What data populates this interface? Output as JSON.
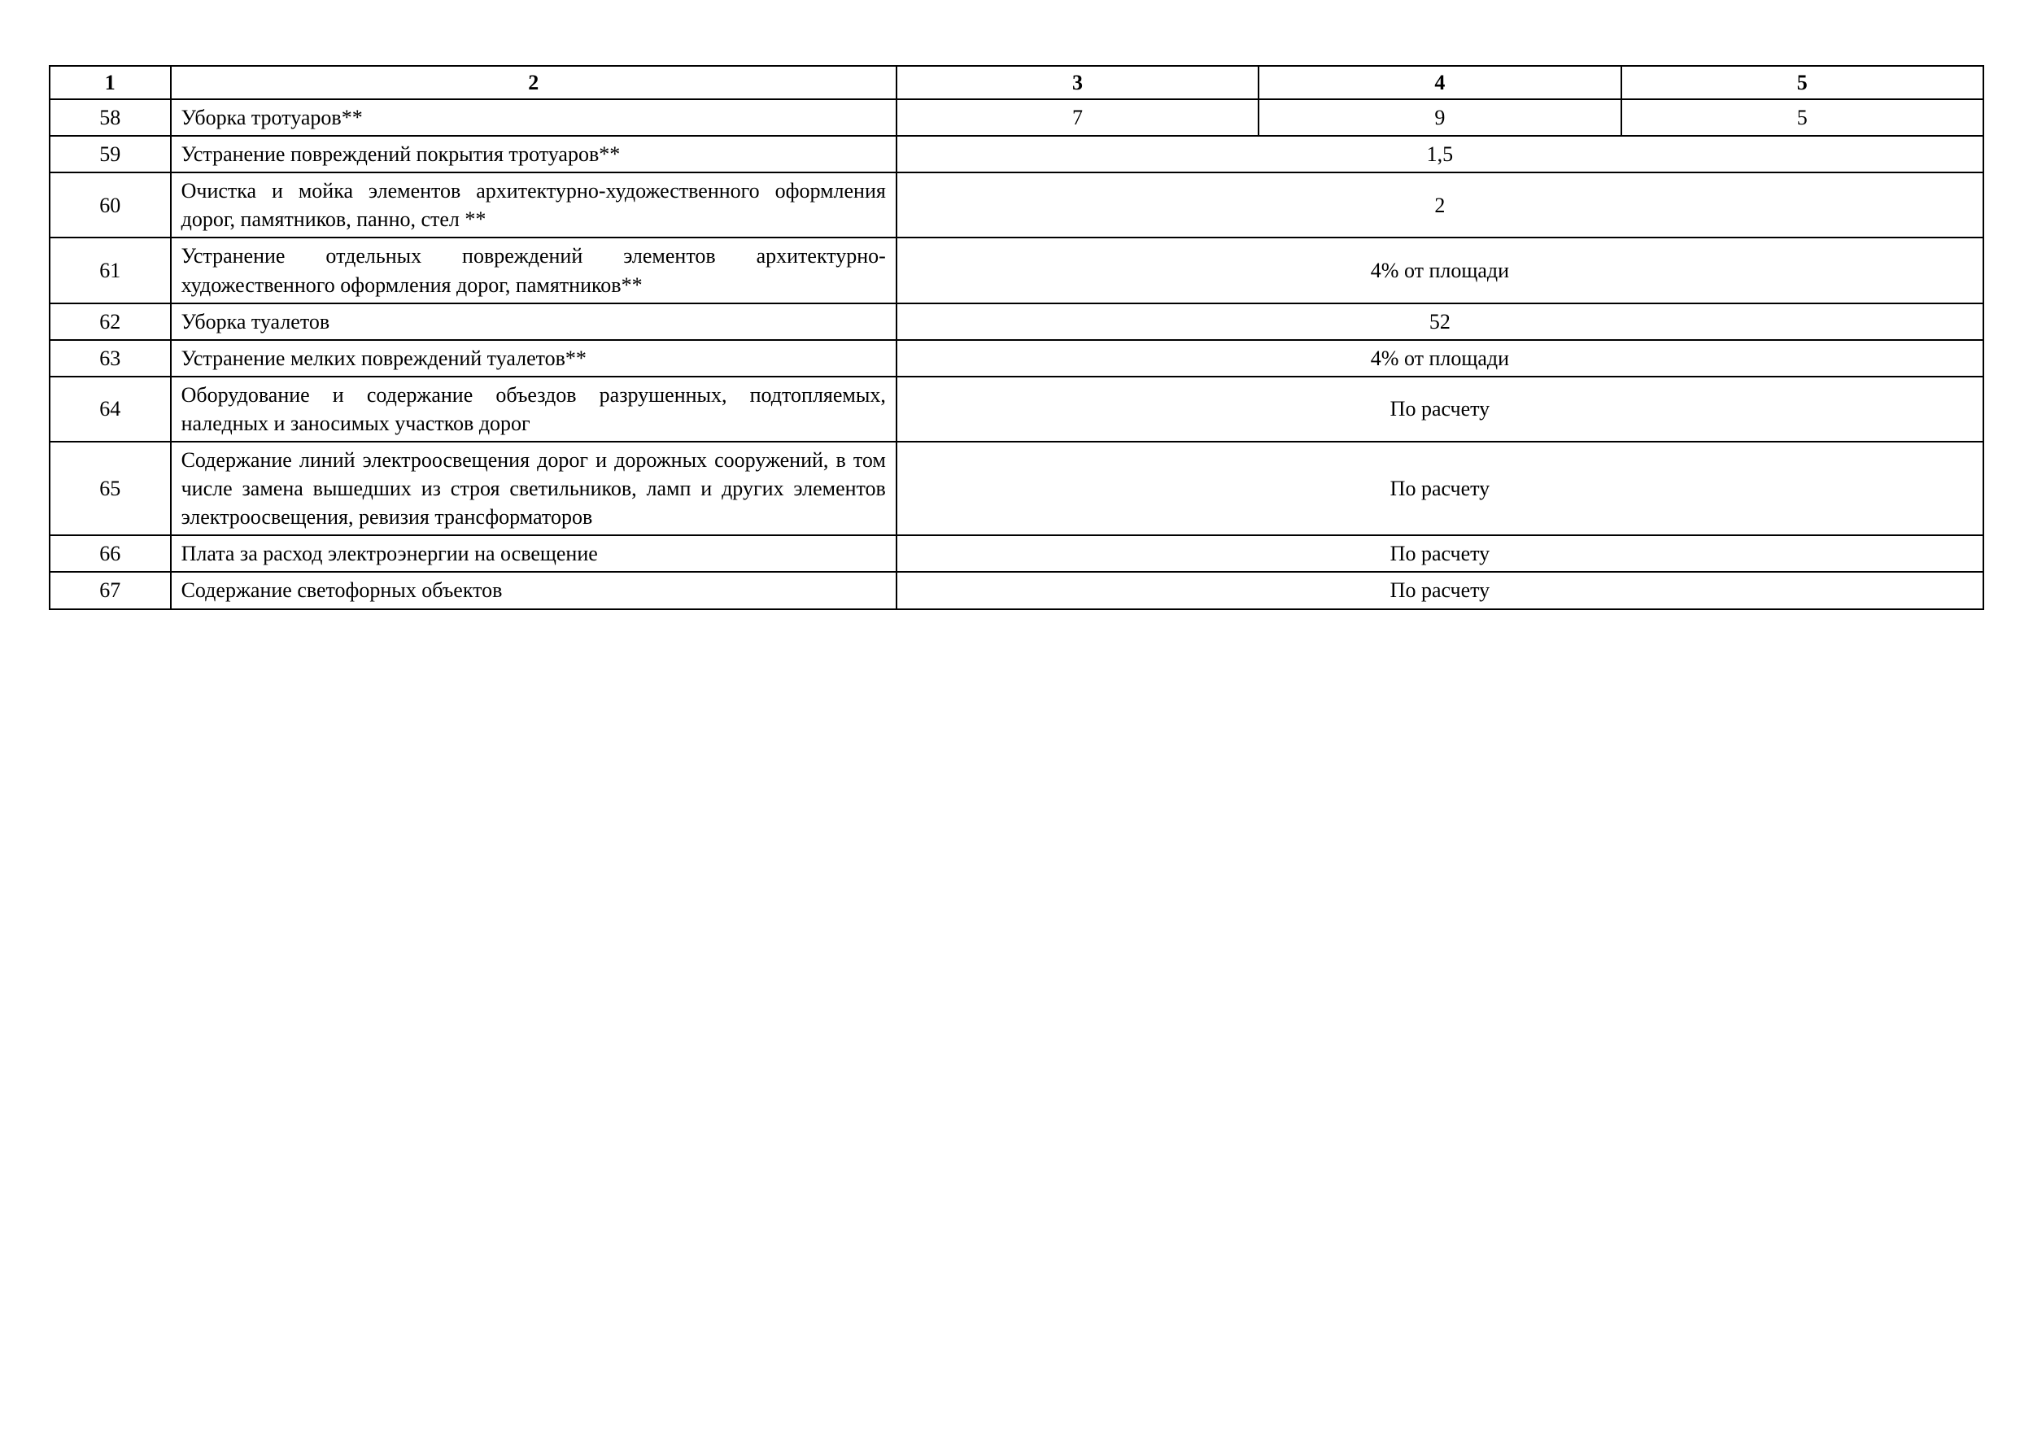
{
  "table": {
    "border_color": "#000000",
    "background_color": "#ffffff",
    "text_color": "#000000",
    "font_family": "Times New Roman",
    "font_size": 26,
    "columns": {
      "col1_width": "5.5%",
      "col2_width": "38.5%",
      "col3_width": "18.67%",
      "col4_width": "18.67%",
      "col5_width": "18.67%"
    },
    "header": {
      "c1": "1",
      "c2": "2",
      "c3": "3",
      "c4": "4",
      "c5": "5"
    },
    "rows": [
      {
        "num": "58",
        "desc": "Уборка тротуаров**",
        "c3": "7",
        "c4": "9",
        "c5": "5"
      },
      {
        "num": "59",
        "desc": "Устранение повреждений покрытия тротуаров**",
        "merged": "1,5"
      },
      {
        "num": "60",
        "desc": "Очистка и мойка элементов архитектурно-художественного оформления дорог, памятников, панно, стел **",
        "merged": "2"
      },
      {
        "num": "61",
        "desc": "Устранение отдельных повреждений элементов архитектурно-художественного оформления дорог, памятников**",
        "merged": "4% от площади"
      },
      {
        "num": "62",
        "desc": "Уборка туалетов",
        "merged": "52"
      },
      {
        "num": "63",
        "desc": "Устранение мелких повреждений туалетов**",
        "merged": "4% от площади"
      },
      {
        "num": "64",
        "desc": "Оборудование и содержание объездов разрушенных, подтопляемых, наледных и заносимых участков дорог",
        "merged": "По расчету"
      },
      {
        "num": "65",
        "desc": "Содержание линий электроосвещения дорог и дорожных сооружений, в том числе замена вышедших из строя светильников, ламп и других элементов электроосвещения, ревизия трансформаторов",
        "merged": "По расчету"
      },
      {
        "num": "66",
        "desc": "Плата за расход электроэнергии на освещение",
        "merged": "По расчету"
      },
      {
        "num": "67",
        "desc": "Содержание светофорных объектов",
        "merged": "По расчету"
      }
    ]
  }
}
